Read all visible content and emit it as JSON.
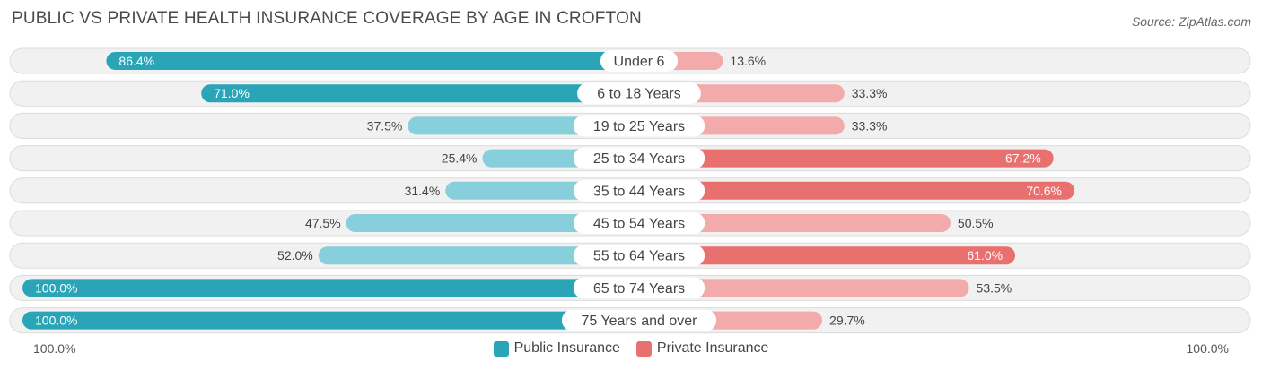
{
  "chart_data": {
    "type": "bar",
    "orientation": "horizontal-diverging",
    "title": "PUBLIC VS PRIVATE HEALTH INSURANCE COVERAGE BY AGE IN CROFTON",
    "source": "Source: ZipAtlas.com",
    "categories": [
      "Under 6",
      "6 to 18 Years",
      "19 to 25 Years",
      "25 to 34 Years",
      "35 to 44 Years",
      "45 to 54 Years",
      "55 to 64 Years",
      "65 to 74 Years",
      "75 Years and over"
    ],
    "series": [
      {
        "name": "Public Insurance",
        "side": "left",
        "values": [
          86.4,
          71.0,
          37.5,
          25.4,
          31.4,
          47.5,
          52.0,
          100.0,
          100.0
        ],
        "labels": [
          "86.4%",
          "71.0%",
          "37.5%",
          "25.4%",
          "31.4%",
          "47.5%",
          "52.0%",
          "100.0%",
          "100.0%"
        ]
      },
      {
        "name": "Private Insurance",
        "side": "right",
        "values": [
          13.6,
          33.3,
          33.3,
          67.2,
          70.6,
          50.5,
          61.0,
          53.5,
          29.7
        ],
        "labels": [
          "13.6%",
          "33.3%",
          "33.3%",
          "67.2%",
          "70.6%",
          "50.5%",
          "61.0%",
          "53.5%",
          "29.7%"
        ]
      }
    ],
    "axis": {
      "left_label": "100.0%",
      "right_label": "100.0%",
      "range": [
        0,
        100
      ]
    },
    "legend": {
      "position": "bottom-center",
      "items": [
        "Public Insurance",
        "Private Insurance"
      ]
    },
    "colors": {
      "public_strong": "#2aa5b8",
      "public_light": "#86cfdb",
      "private_strong": "#e8716f",
      "private_light": "#f2abaa",
      "row_background": "#f1f1f1",
      "row_border": "#dcdcdc"
    }
  }
}
